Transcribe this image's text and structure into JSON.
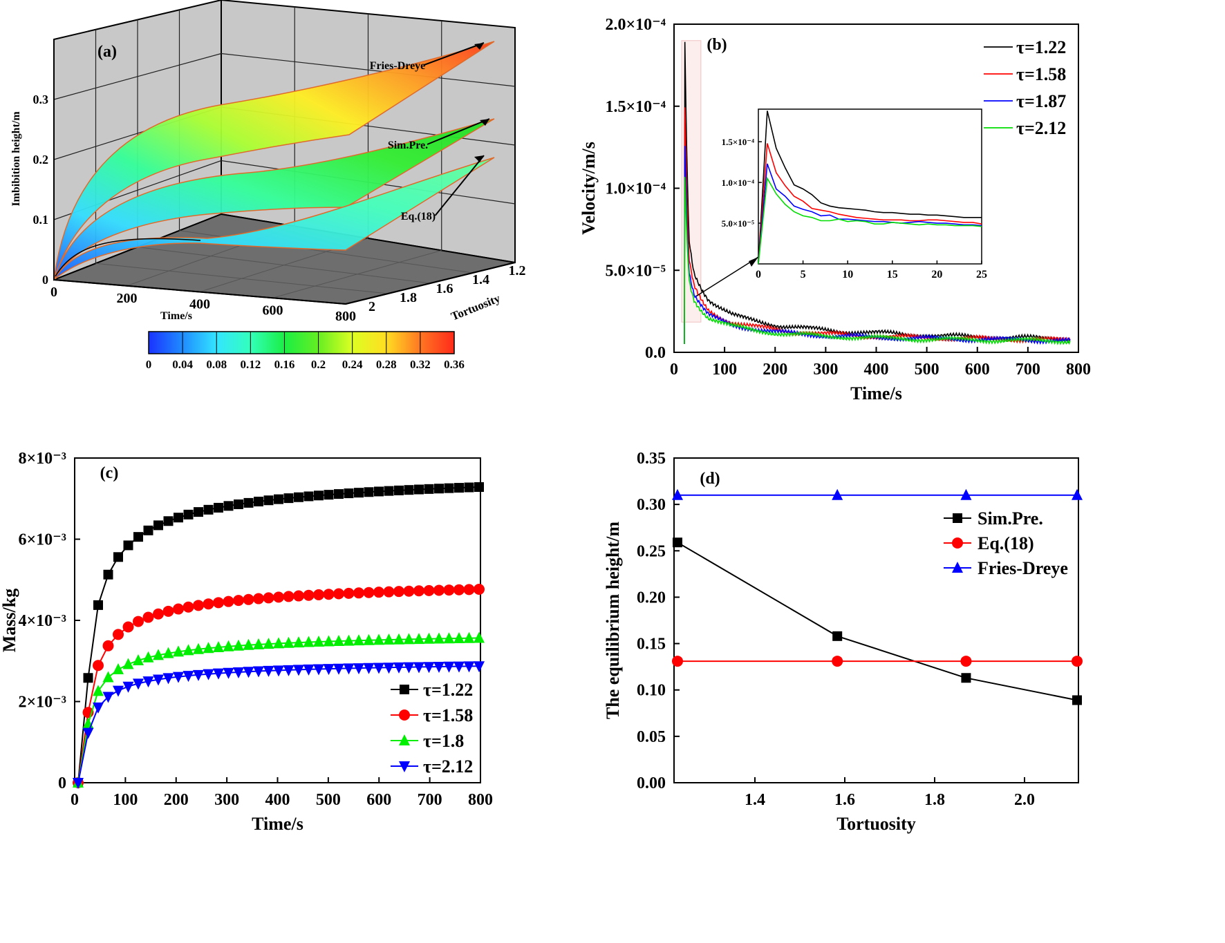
{
  "panels": {
    "a": {
      "letter": "(a)",
      "type": "surface3d",
      "zlabel": "Imbibition height/m",
      "xlabel": "Time/s",
      "ylabel": "Tortuosity",
      "zticks": [
        "0",
        "0.1",
        "0.2",
        "0.3"
      ],
      "xticks": [
        "0",
        "200",
        "400",
        "600",
        "800"
      ],
      "yticks": [
        "2",
        "1.8",
        "1.6",
        "1.4",
        "1.2"
      ],
      "colorbar": {
        "ticks": [
          "0",
          "0.04",
          "0.08",
          "0.12",
          "0.16",
          "0.2",
          "0.24",
          "0.28",
          "0.32",
          "0.36"
        ],
        "colors": [
          "#1a33ff",
          "#1f8cff",
          "#33e5ff",
          "#33ffbb",
          "#1aee44",
          "#66ee22",
          "#ddff22",
          "#ffdd22",
          "#ff7722",
          "#ff2a1a"
        ]
      },
      "annotations": [
        "Fries-Dreye",
        "Sim.Pre.",
        "Eq.(18)"
      ],
      "surfaces": [
        {
          "name": "Fries-Dreye",
          "equilibrium": 0.31,
          "colors": [
            "#1a5aff",
            "#33ddff",
            "#33ff99",
            "#aaff33",
            "#ffee22",
            "#ff9922",
            "#ff3a1a"
          ]
        },
        {
          "name": "Sim.Pre.",
          "equilibrium": 0.22,
          "colors": [
            "#1a5aff",
            "#33ddff",
            "#33ff99",
            "#33ee33",
            "#22dd22"
          ]
        },
        {
          "name": "Eq.(18)",
          "equilibrium": 0.13,
          "colors": [
            "#1a5aff",
            "#33ddff",
            "#44ffbb",
            "#66ff99"
          ]
        }
      ]
    },
    "b": {
      "letter": "(b)",
      "chart_data": {
        "type": "line",
        "xlabel": "Time/s",
        "ylabel": "Velocity/m/s",
        "xlim": [
          0,
          800
        ],
        "ylim": [
          0,
          0.0002
        ],
        "xticks": [
          "0",
          "100",
          "200",
          "300",
          "400",
          "500",
          "600",
          "700",
          "800"
        ],
        "yticks": [
          "0.0",
          "5.0×10⁻⁵",
          "1.0×10⁻⁴",
          "1.5×10⁻⁴",
          "2.0×10⁻⁴"
        ],
        "legend_position": "top-right",
        "series": [
          {
            "name": "τ=1.22",
            "color": "#000000",
            "peak": 0.000188,
            "x": [
              1,
              10,
              20,
              50,
              100,
              200,
              300,
              400,
              500,
              600,
              700,
              800
            ],
            "values": [
              0.000188,
              6.5e-05,
              4.5e-05,
              2.8e-05,
              1.8e-05,
              1.15e-05,
              8.5e-06,
              7e-06,
              5.5e-06,
              4.5e-06,
              4e-06,
              3e-06
            ]
          },
          {
            "name": "τ=1.58",
            "color": "#ff0000",
            "peak": 0.000148,
            "x": [
              1,
              10,
              20,
              50,
              100,
              200,
              300,
              400,
              500,
              600,
              700,
              800
            ],
            "values": [
              0.000148,
              5.2e-05,
              3.6e-05,
              2.1e-05,
              1.35e-05,
              8.5e-06,
              6.2e-06,
              4.8e-06,
              4e-06,
              3.4e-06,
              3e-06,
              2.5e-06
            ]
          },
          {
            "name": "τ=1.87",
            "color": "#0000ff",
            "peak": 0.000123,
            "x": [
              1,
              10,
              20,
              50,
              100,
              200,
              300,
              400,
              500,
              600,
              700,
              800
            ],
            "values": [
              0.000123,
              4.5e-05,
              3.1e-05,
              1.8e-05,
              1.2e-05,
              7.2e-06,
              5.2e-06,
              4.2e-06,
              3.5e-06,
              3e-06,
              2.6e-06,
              2.2e-06
            ]
          },
          {
            "name": "τ=2.12",
            "color": "#00dd00",
            "peak": 0.000105,
            "x": [
              1,
              10,
              20,
              50,
              100,
              200,
              300,
              400,
              500,
              600,
              700,
              800
            ],
            "values": [
              0.000105,
              4e-05,
              2.8e-05,
              1.65e-05,
              1.1e-05,
              6.6e-06,
              4.8e-06,
              3.8e-06,
              3e-06,
              2.6e-06,
              2.2e-06,
              2e-06
            ]
          }
        ],
        "inset": {
          "xlim": [
            0,
            25
          ],
          "ylim": [
            0,
            0.00019
          ],
          "xticks": [
            "0",
            "5",
            "10",
            "15",
            "20",
            "25"
          ],
          "yticks": [
            "5.0×10⁻⁵",
            "1.0×10⁻⁴",
            "1.5×10⁻⁴"
          ],
          "series": [
            {
              "name": "τ=1.22",
              "color": "#000000",
              "x": [
                0,
                1,
                2,
                3,
                4,
                5,
                6,
                7,
                8,
                9,
                10,
                11,
                12,
                13,
                14,
                15,
                16,
                17,
                18,
                19,
                20,
                21,
                22,
                23,
                24,
                25
              ],
              "values": [
                0,
                0.000188,
                0.000142,
                0.000118,
                9.7e-05,
                9.2e-05,
                8.5e-05,
                7.5e-05,
                7.1e-05,
                6.9e-05,
                6.8e-05,
                6.7e-05,
                6.6e-05,
                6.4e-05,
                6.3e-05,
                6.3e-05,
                6.2e-05,
                6.1e-05,
                6.1e-05,
                6e-05,
                6e-05,
                5.9e-05,
                5.8e-05,
                5.7e-05,
                5.7e-05,
                5.7e-05
              ]
            },
            {
              "name": "τ=1.58",
              "color": "#ff0000",
              "x": [
                0,
                1,
                2,
                3,
                4,
                5,
                6,
                7,
                8,
                9,
                10,
                11,
                12,
                13,
                14,
                15,
                16,
                17,
                18,
                19,
                20,
                21,
                22,
                23,
                24,
                25
              ],
              "values": [
                0,
                0.000148,
                0.000112,
                9.6e-05,
                8.3e-05,
                7.7e-05,
                6.8e-05,
                6.6e-05,
                6.4e-05,
                6.1e-05,
                5.9e-05,
                5.7e-05,
                5.6e-05,
                5.5e-05,
                5.4e-05,
                5.4e-05,
                5.4e-05,
                5.3e-05,
                5.3e-05,
                5.4e-05,
                5.4e-05,
                5.3e-05,
                5.2e-05,
                5.1e-05,
                5.1e-05,
                4.9e-05
              ]
            },
            {
              "name": "τ=1.87",
              "color": "#0000ff",
              "x": [
                0,
                1,
                2,
                3,
                4,
                5,
                6,
                7,
                8,
                9,
                10,
                11,
                12,
                13,
                14,
                15,
                16,
                17,
                18,
                19,
                20,
                21,
                22,
                23,
                24,
                25
              ],
              "values": [
                0,
                0.000123,
                9.2e-05,
                8.3e-05,
                7.1e-05,
                6.7e-05,
                6.4e-05,
                5.9e-05,
                6e-05,
                5.5e-05,
                5.5e-05,
                5.4e-05,
                5.3e-05,
                5.2e-05,
                5.2e-05,
                5.1e-05,
                5e-05,
                5.1e-05,
                5.2e-05,
                5.1e-05,
                5e-05,
                5e-05,
                4.9e-05,
                4.8e-05,
                4.8e-05,
                4.7e-05
              ]
            },
            {
              "name": "τ=2.12",
              "color": "#00dd00",
              "x": [
                0,
                1,
                2,
                3,
                4,
                5,
                6,
                7,
                8,
                9,
                10,
                11,
                12,
                13,
                14,
                15,
                16,
                17,
                18,
                19,
                20,
                21,
                22,
                23,
                24,
                25
              ],
              "values": [
                0,
                0.000105,
                8.6e-05,
                7.3e-05,
                6.4e-05,
                5.9e-05,
                5.7e-05,
                5.3e-05,
                5.3e-05,
                5.5e-05,
                5.2e-05,
                5.3e-05,
                5.2e-05,
                4.9e-05,
                4.9e-05,
                5.1e-05,
                5e-05,
                4.9e-05,
                4.8e-05,
                4.9e-05,
                4.8e-05,
                4.8e-05,
                4.7e-05,
                4.7e-05,
                4.7e-05,
                4.6e-05
              ]
            }
          ]
        }
      }
    },
    "c": {
      "letter": "(c)",
      "chart_data": {
        "type": "line",
        "xlabel": "Time/s",
        "ylabel": "Mass/kg",
        "xlim": [
          0,
          800
        ],
        "ylim": [
          0,
          0.008
        ],
        "xticks": [
          "0",
          "100",
          "200",
          "300",
          "400",
          "500",
          "600",
          "700",
          "800"
        ],
        "yticks": [
          "0",
          "2×10⁻³",
          "4×10⁻³",
          "6×10⁻³",
          "8×10⁻³"
        ],
        "legend_position": "bottom-right",
        "series": [
          {
            "name": "τ=1.22",
            "color": "#000000",
            "marker": "square",
            "final": 0.00785,
            "k": 0.00258,
            "x": [
              0,
              20,
              40,
              60,
              80,
              100,
              120,
              140,
              160,
              180,
              200,
              220,
              240,
              260,
              280,
              300,
              320,
              340,
              360,
              380,
              400,
              420,
              440,
              460,
              480,
              500,
              520,
              540,
              560,
              580,
              600,
              620,
              640,
              660,
              680,
              700,
              720,
              740,
              760,
              780,
              800
            ]
          },
          {
            "name": "τ=1.58",
            "color": "#ff0000",
            "marker": "circle",
            "final": 0.00513,
            "k": 0.00173,
            "x": [
              0,
              20,
              40,
              60,
              80,
              100,
              120,
              140,
              160,
              180,
              200,
              220,
              240,
              260,
              280,
              300,
              320,
              340,
              360,
              380,
              400,
              420,
              440,
              460,
              480,
              500,
              520,
              540,
              560,
              580,
              600,
              620,
              640,
              660,
              680,
              700,
              720,
              740,
              760,
              780,
              800
            ]
          },
          {
            "name": "τ=1.8",
            "color": "#00ee00",
            "marker": "triangle-up",
            "final": 0.00382,
            "k": 0.00145,
            "x": [
              0,
              20,
              40,
              60,
              80,
              100,
              120,
              140,
              160,
              180,
              200,
              220,
              240,
              260,
              280,
              300,
              320,
              340,
              360,
              380,
              400,
              420,
              440,
              460,
              480,
              500,
              520,
              540,
              560,
              580,
              600,
              620,
              640,
              660,
              680,
              700,
              720,
              740,
              760,
              780,
              800
            ]
          },
          {
            "name": "τ=2.12",
            "color": "#0000ff",
            "marker": "triangle-down",
            "final": 0.00307,
            "k": 0.00123,
            "x": [
              0,
              20,
              40,
              60,
              80,
              100,
              120,
              140,
              160,
              180,
              200,
              220,
              240,
              260,
              280,
              300,
              320,
              340,
              360,
              380,
              400,
              420,
              440,
              460,
              480,
              500,
              520,
              540,
              560,
              580,
              600,
              620,
              640,
              660,
              680,
              700,
              720,
              740,
              760,
              780,
              800
            ]
          }
        ]
      }
    },
    "d": {
      "letter": "(d)",
      "chart_data": {
        "type": "line",
        "xlabel": "Tortuosity",
        "ylabel": "The equilibrium height/m",
        "xlim": [
          1.22,
          2.12
        ],
        "ylim": [
          0,
          0.35
        ],
        "xticks": [
          "1.4",
          "1.6",
          "1.8",
          "2.0"
        ],
        "yticks": [
          "0.00",
          "0.05",
          "0.10",
          "0.15",
          "0.20",
          "0.25",
          "0.30",
          "0.35"
        ],
        "legend_position": "upper-right",
        "series": [
          {
            "name": "Sim.Pre.",
            "color": "#000000",
            "marker": "square",
            "x": [
              1.22,
              1.58,
              1.87,
              2.12
            ],
            "values": [
              0.259,
              0.158,
              0.113,
              0.089
            ]
          },
          {
            "name": "Eq.(18)",
            "color": "#ff0000",
            "marker": "circle",
            "x": [
              1.22,
              1.58,
              1.87,
              2.12
            ],
            "values": [
              0.131,
              0.131,
              0.131,
              0.131
            ]
          },
          {
            "name": "Fries-Dreye",
            "color": "#0000ff",
            "marker": "triangle-up",
            "x": [
              1.22,
              1.58,
              1.87,
              2.12
            ],
            "values": [
              0.31,
              0.31,
              0.31,
              0.31
            ]
          }
        ]
      }
    }
  }
}
